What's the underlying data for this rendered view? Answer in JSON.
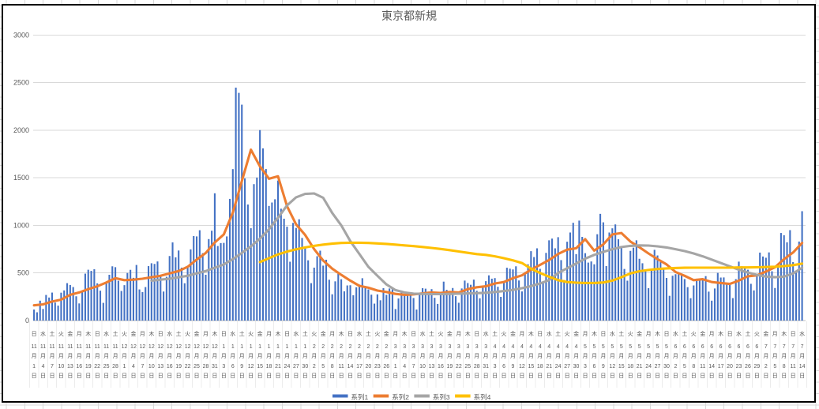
{
  "chart_data": {
    "type": "bar+line combo",
    "title": "東京都新規",
    "xlabel": "",
    "ylabel": "",
    "ylim": [
      0,
      3000
    ],
    "y_ticks": [
      0,
      500,
      1000,
      1500,
      2000,
      2500,
      3000
    ],
    "grid": true,
    "legend_position": "bottom",
    "x_label_units": {
      "month_suffix": "月",
      "day_suffix": "日"
    },
    "x_ticks_note": "category axis shows every 3rd day; bars are daily values between ticks",
    "x_tick_labels": [
      [
        "日",
        11,
        1
      ],
      [
        "水",
        11,
        4
      ],
      [
        "土",
        11,
        7
      ],
      [
        "火",
        11,
        10
      ],
      [
        "金",
        11,
        13
      ],
      [
        "月",
        11,
        16
      ],
      [
        "木",
        11,
        19
      ],
      [
        "日",
        11,
        22
      ],
      [
        "水",
        11,
        25
      ],
      [
        "土",
        11,
        28
      ],
      [
        "火",
        12,
        1
      ],
      [
        "金",
        12,
        4
      ],
      [
        "月",
        12,
        7
      ],
      [
        "木",
        12,
        10
      ],
      [
        "日",
        12,
        13
      ],
      [
        "水",
        12,
        16
      ],
      [
        "土",
        12,
        19
      ],
      [
        "火",
        12,
        22
      ],
      [
        "金",
        12,
        25
      ],
      [
        "月",
        12,
        28
      ],
      [
        "木",
        12,
        31
      ],
      [
        "日",
        1,
        3
      ],
      [
        "水",
        1,
        6
      ],
      [
        "土",
        1,
        9
      ],
      [
        "火",
        1,
        12
      ],
      [
        "金",
        1,
        15
      ],
      [
        "月",
        1,
        18
      ],
      [
        "木",
        1,
        21
      ],
      [
        "日",
        1,
        24
      ],
      [
        "水",
        1,
        27
      ],
      [
        "土",
        1,
        30
      ],
      [
        "火",
        2,
        2
      ],
      [
        "金",
        2,
        5
      ],
      [
        "月",
        2,
        8
      ],
      [
        "木",
        2,
        11
      ],
      [
        "日",
        2,
        14
      ],
      [
        "水",
        2,
        17
      ],
      [
        "土",
        2,
        20
      ],
      [
        "火",
        2,
        23
      ],
      [
        "金",
        2,
        26
      ],
      [
        "月",
        3,
        1
      ],
      [
        "木",
        3,
        4
      ],
      [
        "日",
        3,
        7
      ],
      [
        "水",
        3,
        10
      ],
      [
        "土",
        3,
        13
      ],
      [
        "火",
        3,
        16
      ],
      [
        "金",
        3,
        19
      ],
      [
        "月",
        3,
        22
      ],
      [
        "木",
        3,
        25
      ],
      [
        "日",
        3,
        28
      ],
      [
        "水",
        3,
        31
      ],
      [
        "土",
        4,
        3
      ],
      [
        "火",
        4,
        6
      ],
      [
        "金",
        4,
        9
      ],
      [
        "月",
        4,
        12
      ],
      [
        "木",
        4,
        15
      ],
      [
        "日",
        4,
        18
      ],
      [
        "水",
        4,
        21
      ],
      [
        "土",
        4,
        24
      ],
      [
        "火",
        4,
        27
      ],
      [
        "金",
        4,
        30
      ],
      [
        "月",
        5,
        3
      ],
      [
        "木",
        5,
        6
      ],
      [
        "日",
        5,
        9
      ],
      [
        "水",
        5,
        12
      ],
      [
        "土",
        5,
        15
      ],
      [
        "火",
        5,
        18
      ],
      [
        "金",
        5,
        21
      ],
      [
        "月",
        5,
        24
      ],
      [
        "木",
        5,
        27
      ],
      [
        "日",
        5,
        30
      ],
      [
        "水",
        6,
        2
      ],
      [
        "土",
        6,
        5
      ],
      [
        "火",
        6,
        8
      ],
      [
        "金",
        6,
        11
      ],
      [
        "月",
        6,
        14
      ],
      [
        "木",
        6,
        17
      ],
      [
        "日",
        6,
        20
      ],
      [
        "水",
        6,
        23
      ],
      [
        "土",
        6,
        26
      ],
      [
        "火",
        6,
        29
      ],
      [
        "金",
        7,
        2
      ],
      [
        "月",
        7,
        5
      ],
      [
        "木",
        7,
        8
      ],
      [
        "日",
        7,
        11
      ],
      [
        "水",
        7,
        14
      ]
    ],
    "bar_series": {
      "name": "系列1",
      "color": "#4472C4",
      "values": [
        116,
        87,
        209,
        122,
        269,
        242,
        294,
        189,
        157,
        293,
        317,
        393,
        374,
        352,
        255,
        180,
        298,
        493,
        534,
        522,
        539,
        391,
        314,
        186,
        401,
        481,
        570,
        561,
        418,
        311,
        372,
        500,
        533,
        449,
        584,
        327,
        299,
        352,
        572,
        602,
        595,
        621,
        480,
        305,
        460,
        678,
        821,
        664,
        736,
        556,
        392,
        563,
        748,
        888,
        884,
        949,
        708,
        481,
        856,
        944,
        1337,
        783,
        814,
        816,
        884,
        1278,
        1591,
        2447,
        2392,
        2268,
        1494,
        1219,
        970,
        1433,
        1502,
        2001,
        1809,
        1592,
        1204,
        1240,
        1274,
        1471,
        1175,
        1070,
        986,
        618,
        1026,
        973,
        1064,
        868,
        769,
        633,
        393,
        556,
        676,
        734,
        577,
        639,
        429,
        276,
        412,
        491,
        434,
        307,
        369,
        371,
        266,
        350,
        378,
        445,
        353,
        327,
        272,
        178,
        275,
        213,
        340,
        270,
        337,
        329,
        121,
        232,
        316,
        279,
        301,
        293,
        237,
        116,
        290,
        340,
        335,
        304,
        330,
        239,
        175,
        300,
        409,
        323,
        303,
        342,
        256,
        187,
        337,
        420,
        394,
        376,
        430,
        313,
        234,
        364,
        414,
        475,
        440,
        446,
        355,
        249,
        399,
        555,
        545,
        537,
        570,
        421,
        306,
        510,
        591,
        729,
        667,
        759,
        543,
        405,
        711,
        843,
        861,
        759,
        876,
        635,
        425,
        828,
        925,
        1027,
        698,
        1050,
        879,
        708,
        609,
        621,
        591,
        907,
        1121,
        1032,
        573,
        925,
        969,
        1010,
        854,
        772,
        542,
        419,
        732,
        766,
        843,
        649,
        602,
        535,
        340,
        542,
        743,
        684,
        614,
        539,
        448,
        260,
        471,
        487,
        508,
        472,
        436,
        351,
        235,
        369,
        440,
        439,
        435,
        467,
        304,
        209,
        337,
        501,
        452,
        453,
        388,
        376,
        236,
        435,
        619,
        570,
        562,
        534,
        386,
        317,
        476,
        714,
        673,
        660,
        716,
        518,
        342,
        593,
        920,
        896,
        822,
        950,
        614,
        502,
        830,
        1149
      ]
    },
    "line_series": [
      {
        "name": "系列2",
        "color": "#ED7D31",
        "values_at_ticks": [
          160,
          170,
          200,
          220,
          270,
          295,
          330,
          360,
          400,
          445,
          425,
          430,
          440,
          455,
          470,
          495,
          520,
          565,
          640,
          710,
          820,
          905,
          1135,
          1465,
          1795,
          1620,
          1490,
          1515,
          1200,
          1010,
          900,
          750,
          630,
          545,
          480,
          420,
          365,
          345,
          315,
          300,
          280,
          270,
          275,
          285,
          295,
          290,
          300,
          295,
          330,
          350,
          360,
          390,
          405,
          445,
          475,
          535,
          585,
          635,
          700,
          745,
          760,
          855,
          735,
          800,
          905,
          920,
          830,
          770,
          705,
          645,
          590,
          510,
          470,
          425,
          435,
          405,
          395,
          385,
          420,
          465,
          475,
          515,
          560,
          645,
          715,
          815
        ]
      },
      {
        "name": "系列3",
        "color": "#A5A5A5",
        "values_at_ticks": [
          null,
          null,
          null,
          null,
          null,
          null,
          null,
          null,
          null,
          null,
          null,
          null,
          null,
          420,
          430,
          440,
          455,
          470,
          495,
          520,
          555,
          590,
          645,
          710,
          780,
          860,
          960,
          1080,
          1210,
          1295,
          1330,
          1335,
          1290,
          1130,
          1000,
          835,
          700,
          565,
          470,
          380,
          320,
          295,
          283,
          280,
          278,
          278,
          280,
          282,
          285,
          288,
          292,
          300,
          310,
          323,
          340,
          362,
          390,
          425,
          500,
          550,
          600,
          650,
          690,
          722,
          750,
          772,
          785,
          790,
          788,
          780,
          768,
          750,
          730,
          705,
          675,
          640,
          605,
          570,
          535,
          505,
          480,
          462,
          455,
          462,
          495,
          555
        ]
      },
      {
        "name": "系列4",
        "color": "#FFC000",
        "values_at_ticks": [
          null,
          null,
          null,
          null,
          null,
          null,
          null,
          null,
          null,
          null,
          null,
          null,
          null,
          null,
          null,
          null,
          null,
          null,
          null,
          null,
          null,
          null,
          null,
          null,
          null,
          615,
          655,
          695,
          725,
          748,
          768,
          785,
          798,
          808,
          815,
          818,
          818,
          815,
          810,
          805,
          798,
          790,
          782,
          773,
          763,
          752,
          740,
          726,
          712,
          698,
          690,
          675,
          655,
          632,
          605,
          545,
          500,
          460,
          425,
          405,
          398,
          395,
          395,
          400,
          420,
          455,
          495,
          518,
          532,
          542,
          548,
          552,
          555,
          556,
          556,
          556,
          556,
          556,
          558,
          558,
          560,
          562,
          566,
          572,
          582,
          598
        ]
      }
    ],
    "legend": [
      "系列1",
      "系列2",
      "系列3",
      "系列4"
    ],
    "colors": {
      "gridline": "#D9D9D9",
      "axis_line": "#BFBFBF",
      "tick_separator": "#ECECEC",
      "text": "#595959",
      "frame": "#000000",
      "sheet_grid": "#D9D9D9"
    }
  }
}
